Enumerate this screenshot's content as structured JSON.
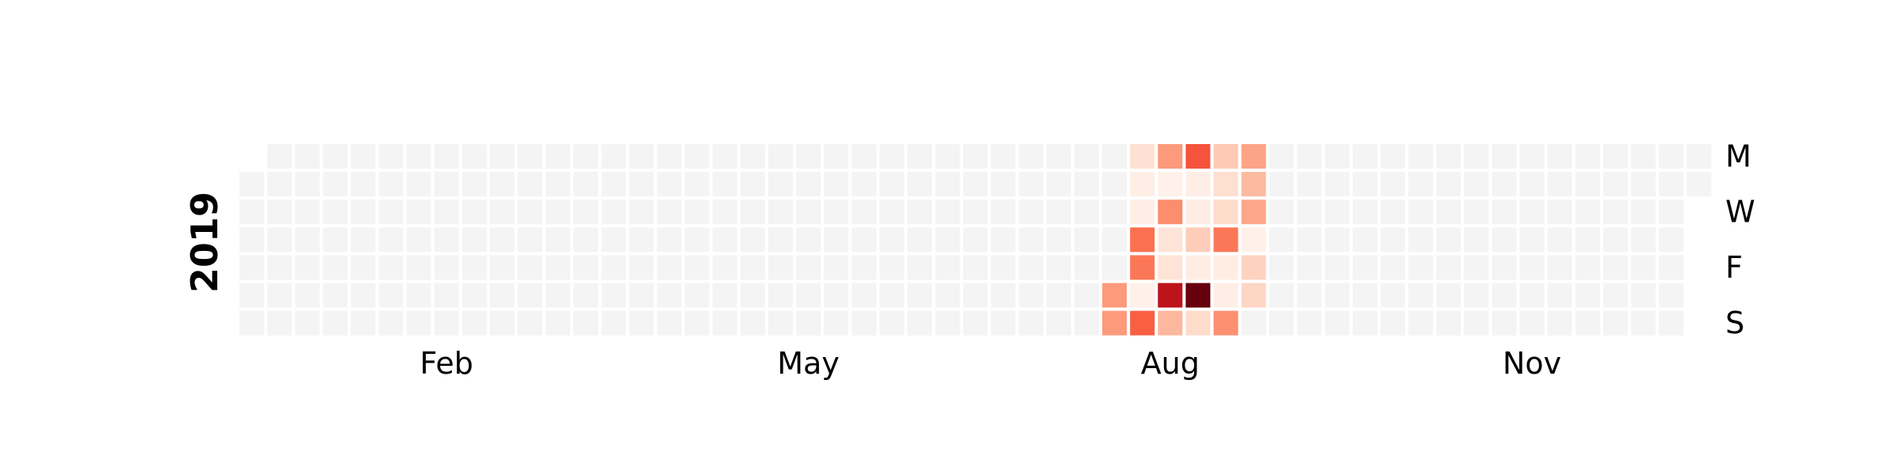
{
  "chart_data": {
    "type": "heatmap",
    "subtype": "calendar",
    "year": "2019",
    "row_labels": [
      "M",
      "",
      "W",
      "",
      "F",
      "",
      "S"
    ],
    "month_labels": [
      {
        "label": "Feb",
        "week": 7
      },
      {
        "label": "May",
        "week": 20
      },
      {
        "label": "Aug",
        "week": 33
      },
      {
        "label": "Nov",
        "week": 46
      }
    ],
    "weeks": 53,
    "first_weekday_of_year": 1,
    "days_in_year": 365,
    "empty_color": "#f4f4f4",
    "colormap": "Reds",
    "max_value": 10,
    "values": [
      {
        "week": 31,
        "day": 5,
        "value": 3.5
      },
      {
        "week": 31,
        "day": 6,
        "value": 3.5
      },
      {
        "week": 32,
        "day": 0,
        "value": 1.2
      },
      {
        "week": 32,
        "day": 1,
        "value": 0.4
      },
      {
        "week": 32,
        "day": 2,
        "value": 0.4
      },
      {
        "week": 32,
        "day": 3,
        "value": 4.8
      },
      {
        "week": 32,
        "day": 4,
        "value": 4.6
      },
      {
        "week": 32,
        "day": 5,
        "value": 0.3
      },
      {
        "week": 32,
        "day": 6,
        "value": 5.3
      },
      {
        "week": 33,
        "day": 0,
        "value": 3.5
      },
      {
        "week": 33,
        "day": 1,
        "value": 0.3
      },
      {
        "week": 33,
        "day": 2,
        "value": 3.9
      },
      {
        "week": 33,
        "day": 3,
        "value": 1.0
      },
      {
        "week": 33,
        "day": 4,
        "value": 1.1
      },
      {
        "week": 33,
        "day": 5,
        "value": 8.0
      },
      {
        "week": 33,
        "day": 6,
        "value": 2.6
      },
      {
        "week": 34,
        "day": 0,
        "value": 5.6
      },
      {
        "week": 34,
        "day": 1,
        "value": 0.4
      },
      {
        "week": 34,
        "day": 2,
        "value": 0.5
      },
      {
        "week": 34,
        "day": 3,
        "value": 1.9
      },
      {
        "week": 34,
        "day": 4,
        "value": 0.5
      },
      {
        "week": 34,
        "day": 5,
        "value": 10.0
      },
      {
        "week": 34,
        "day": 6,
        "value": 1.4
      },
      {
        "week": 35,
        "day": 0,
        "value": 2.0
      },
      {
        "week": 35,
        "day": 1,
        "value": 1.3
      },
      {
        "week": 35,
        "day": 2,
        "value": 1.4
      },
      {
        "week": 35,
        "day": 3,
        "value": 4.6
      },
      {
        "week": 35,
        "day": 4,
        "value": 0.5
      },
      {
        "week": 35,
        "day": 5,
        "value": 0.4
      },
      {
        "week": 35,
        "day": 6,
        "value": 3.8
      },
      {
        "week": 36,
        "day": 0,
        "value": 3.2
      },
      {
        "week": 36,
        "day": 1,
        "value": 2.5
      },
      {
        "week": 36,
        "day": 2,
        "value": 3.1
      },
      {
        "week": 36,
        "day": 3,
        "value": 0.3
      },
      {
        "week": 36,
        "day": 4,
        "value": 1.7
      },
      {
        "week": 36,
        "day": 5,
        "value": 1.6
      }
    ]
  }
}
